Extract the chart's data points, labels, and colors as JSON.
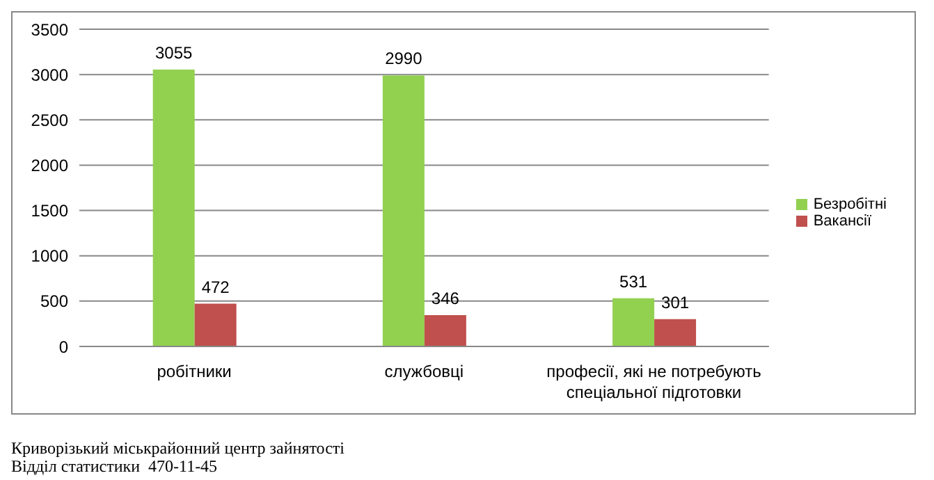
{
  "chart_data": {
    "type": "bar",
    "categories": [
      "робітники",
      "службовці",
      "професії, які не потребують спеціальної підготовки"
    ],
    "series": [
      {
        "name": "Безробітні",
        "color": "#92d050",
        "values": [
          3055,
          2990,
          531
        ]
      },
      {
        "name": "Вакансії",
        "color": "#c0504d",
        "values": [
          472,
          346,
          301
        ]
      }
    ],
    "ylim": [
      0,
      3500
    ],
    "yticks": [
      0,
      500,
      1000,
      1500,
      2000,
      2500,
      3000,
      3500
    ],
    "grid": "y",
    "legend": "right",
    "data_labels": true,
    "annotations": [
      "Криворізький міськрайонний центр зайнятості",
      "Відділ статистики  470-11-45"
    ]
  }
}
